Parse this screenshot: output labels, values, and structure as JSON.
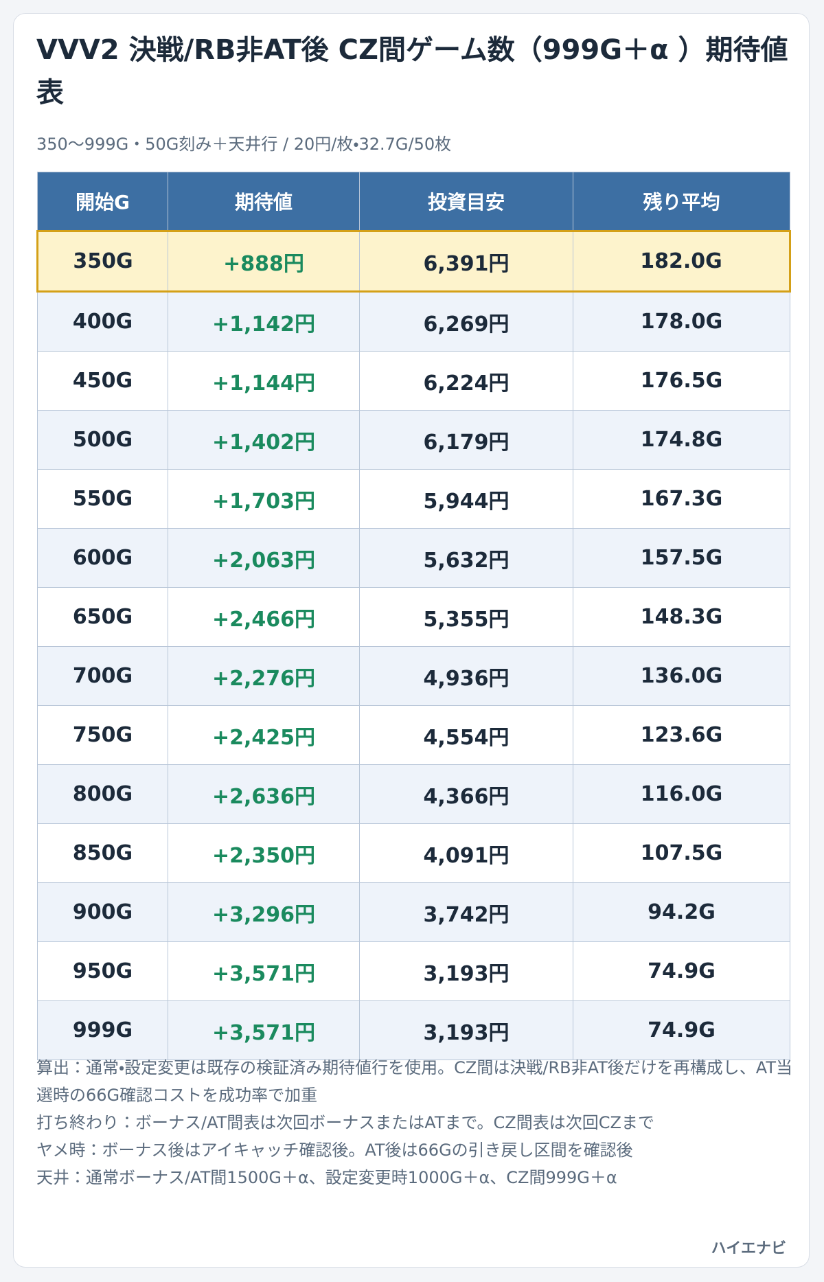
{
  "header": {
    "title": "VVV2 決戦/RB非AT後 CZ間ゲーム数（999G＋α ）期待値表",
    "subtitle": "350〜999G・50G刻み＋天井行 / 20円/枚・32.7G/50枚"
  },
  "table": {
    "columns": [
      "開始G",
      "期待値",
      "投資目安",
      "残り平均"
    ],
    "rows": [
      [
        "350G",
        "+888円",
        "6,391円",
        "182.0G"
      ],
      [
        "400G",
        "+1,142円",
        "6,269円",
        "178.0G"
      ],
      [
        "450G",
        "+1,144円",
        "6,224円",
        "176.5G"
      ],
      [
        "500G",
        "+1,402円",
        "6,179円",
        "174.8G"
      ],
      [
        "550G",
        "+1,703円",
        "5,944円",
        "167.3G"
      ],
      [
        "600G",
        "+2,063円",
        "5,632円",
        "157.5G"
      ],
      [
        "650G",
        "+2,466円",
        "5,355円",
        "148.3G"
      ],
      [
        "700G",
        "+2,276円",
        "4,936円",
        "136.0G"
      ],
      [
        "750G",
        "+2,425円",
        "4,554円",
        "123.6G"
      ],
      [
        "800G",
        "+2,636円",
        "4,366円",
        "116.0G"
      ],
      [
        "850G",
        "+2,350円",
        "4,091円",
        "107.5G"
      ],
      [
        "900G",
        "+3,296円",
        "3,742円",
        "94.2G"
      ],
      [
        "950G",
        "+3,571円",
        "3,193円",
        "74.9G"
      ],
      [
        "999G",
        "+3,571円",
        "3,193円",
        "74.9G"
      ]
    ]
  },
  "notes": [
    "算出：通常・設定変更は既存の検証済み期待値行を使用。CZ間は決戦/RB非AT後だけを再構成し、AT当選時の66G確認コストを成功率で加重",
    "打ち終わり：ボーナス/AT間表は次回ボーナスまたはATまで。CZ間表は次回CZまで",
    "ヤメ時：ボーナス後はアイキャッチ確認後。AT後は66Gの引き戻し区間を確認後",
    "天井：通常ボーナス/AT間1500G＋α、設定変更時1000G＋α、CZ間999G＋α"
  ],
  "footer": "ハイエナビ"
}
